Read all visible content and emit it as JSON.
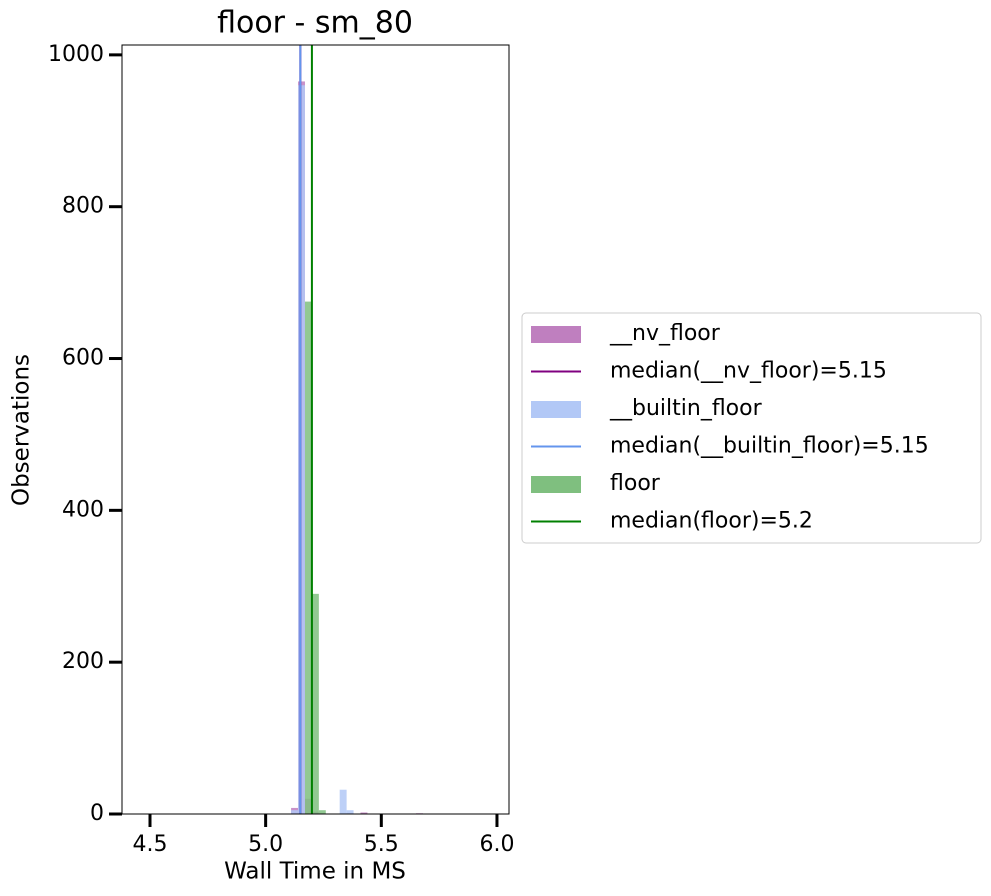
{
  "chart_data": {
    "type": "histogram",
    "title": "floor - sm_80",
    "xlabel": "Wall Time in MS",
    "ylabel": "Observations",
    "bins": [
      5.11,
      5.14,
      5.17,
      5.2,
      5.23,
      5.26,
      5.29,
      5.32,
      5.35,
      5.38,
      5.41,
      5.44,
      5.47,
      5.5,
      5.53,
      5.56,
      5.59,
      5.62,
      5.65,
      5.68
    ],
    "series": [
      {
        "name": "__nv_floor",
        "color": "#bf7fbf",
        "values": [
          8,
          965,
          20,
          3,
          0,
          0,
          0,
          0,
          1,
          0,
          2,
          0,
          0,
          0,
          0,
          0,
          0,
          0,
          1
        ]
      },
      {
        "name": "__builtin_floor",
        "color": "#b2c8f6",
        "values": [
          5,
          960,
          0,
          0,
          0,
          0,
          0,
          32,
          5,
          0,
          0,
          0,
          0,
          0,
          0,
          0,
          0,
          0,
          0
        ]
      },
      {
        "name": "floor",
        "color": "#7fbf7f",
        "values": [
          0,
          0,
          675,
          290,
          5,
          0,
          0,
          0,
          0,
          0,
          0,
          0,
          0,
          0,
          0,
          0,
          0,
          0,
          0
        ]
      }
    ],
    "medians": [
      {
        "label": "median(__nv_floor)=5.15",
        "value": 5.15,
        "color": "#800080"
      },
      {
        "label": "median(__builtin_floor)=5.15",
        "value": 5.15,
        "color": "#6495ed"
      },
      {
        "label": "median(floor)=5.2",
        "value": 5.2,
        "color": "#008000"
      }
    ],
    "xlim": [
      4.379,
      6.052
    ],
    "ylim": [
      0,
      1013
    ],
    "xticks": [
      4.5,
      {
        "value": 5.0,
        "label": "5.0"
      },
      5.5,
      {
        "value": 6.0,
        "label": "6.0"
      }
    ],
    "yticks": [
      0,
      200,
      400,
      600,
      800,
      1000
    ],
    "legend": "right"
  }
}
